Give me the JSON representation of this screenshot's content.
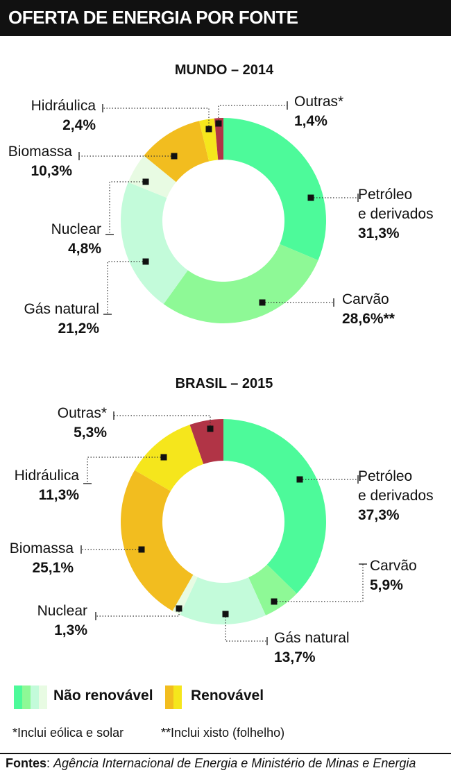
{
  "title": "OFERTA DE ENERGIA POR FONTE",
  "chart_data": [
    {
      "type": "pie",
      "donut": true,
      "title": "MUNDO – 2014",
      "slices": [
        {
          "label": [
            "Petróleo",
            "e derivados"
          ],
          "value": 31.3,
          "value_label": "31,3%",
          "color": "#4dfa9a"
        },
        {
          "label": [
            "Carvão"
          ],
          "value": 28.6,
          "value_label": "28,6%**",
          "color": "#8ef996"
        },
        {
          "label": [
            "Gás natural"
          ],
          "value": 21.2,
          "value_label": "21,2%",
          "color": "#c3fbda"
        },
        {
          "label": [
            "Nuclear"
          ],
          "value": 4.8,
          "value_label": "4,8%",
          "color": "#e8fbe3"
        },
        {
          "label": [
            "Biomassa"
          ],
          "value": 10.3,
          "value_label": "10,3%",
          "color": "#f2bd1f"
        },
        {
          "label": [
            "Hidráulica"
          ],
          "value": 2.4,
          "value_label": "2,4%",
          "color": "#f5e61c"
        },
        {
          "label": [
            "Outras*"
          ],
          "value": 1.4,
          "value_label": "1,4%",
          "color": "#b13446"
        }
      ]
    },
    {
      "type": "pie",
      "donut": true,
      "title": "BRASIL – 2015",
      "slices": [
        {
          "label": [
            "Petróleo",
            "e derivados"
          ],
          "value": 37.3,
          "value_label": "37,3%",
          "color": "#4dfa9a"
        },
        {
          "label": [
            "Carvão"
          ],
          "value": 5.9,
          "value_label": "5,9%",
          "color": "#8ef996"
        },
        {
          "label": [
            "Gás natural"
          ],
          "value": 13.7,
          "value_label": "13,7%",
          "color": "#c3fbda"
        },
        {
          "label": [
            "Nuclear"
          ],
          "value": 1.3,
          "value_label": "1,3%",
          "color": "#e8fbe3"
        },
        {
          "label": [
            "Biomassa"
          ],
          "value": 25.1,
          "value_label": "25,1%",
          "color": "#f2bd1f"
        },
        {
          "label": [
            "Hidráulica"
          ],
          "value": 11.3,
          "value_label": "11,3%",
          "color": "#f5e61c"
        },
        {
          "label": [
            "Outras*"
          ],
          "value": 5.3,
          "value_label": "5,3%",
          "color": "#b13446"
        }
      ]
    }
  ],
  "legend": {
    "non_renewable": {
      "label": "Não renovável",
      "colors": [
        "#4dfa9a",
        "#8ef996",
        "#c3fbda",
        "#e8fbe3"
      ]
    },
    "renewable": {
      "label": "Renovável",
      "colors": [
        "#f2bd1f",
        "#f5e61c"
      ]
    }
  },
  "notes": {
    "note1": "*Inclui eólica e solar",
    "note2": "**Inclui xisto (folhelho)"
  },
  "source": {
    "label": "Fontes",
    "separator": ":",
    "text": "Agência Internacional de Energia e Ministério de Minas e Energia"
  }
}
